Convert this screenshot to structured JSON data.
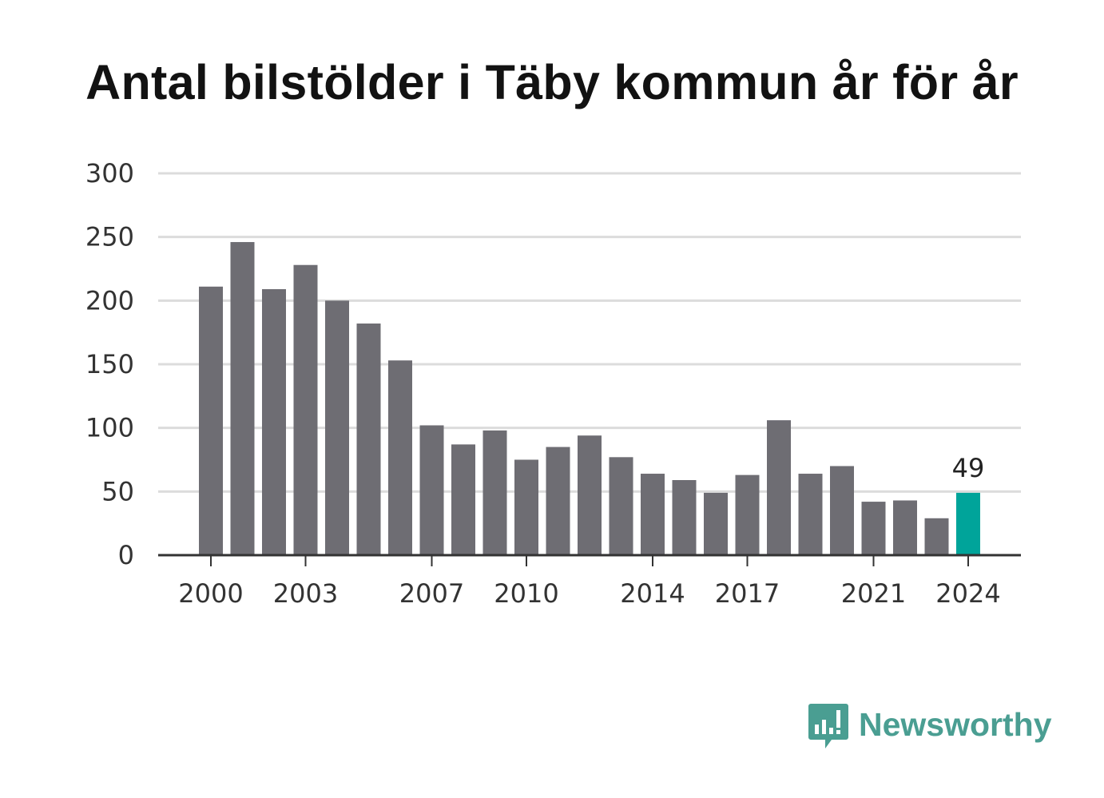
{
  "chart_data": {
    "type": "bar",
    "title": "Antal bilstölder i Täby kommun år för år",
    "categories": [
      "2000",
      "2001",
      "2002",
      "2003",
      "2004",
      "2005",
      "2006",
      "2007",
      "2008",
      "2009",
      "2010",
      "2011",
      "2012",
      "2013",
      "2014",
      "2015",
      "2016",
      "2017",
      "2018",
      "2019",
      "2020",
      "2021",
      "2022",
      "2023",
      "2024"
    ],
    "values": [
      211,
      246,
      209,
      228,
      200,
      182,
      153,
      102,
      87,
      98,
      75,
      85,
      94,
      77,
      64,
      59,
      49,
      63,
      106,
      64,
      70,
      42,
      43,
      29,
      49
    ],
    "x_tick_labels": [
      "2000",
      "2003",
      "2007",
      "2010",
      "2014",
      "2017",
      "2021",
      "2024"
    ],
    "y_ticks": [
      0,
      50,
      100,
      150,
      200,
      250,
      300
    ],
    "ylim": [
      0,
      300
    ],
    "xlabel": "",
    "ylabel": "",
    "grid": true,
    "highlight": {
      "category": "2024",
      "label": "49"
    },
    "colors": {
      "bar": "#6e6d73",
      "highlight": "#00a49a",
      "grid": "#dcdcdc",
      "axis": "#333333"
    }
  },
  "brand": {
    "name": "Newsworthy",
    "icon": "newsworthy-logo-icon",
    "color": "#4a9e92"
  }
}
